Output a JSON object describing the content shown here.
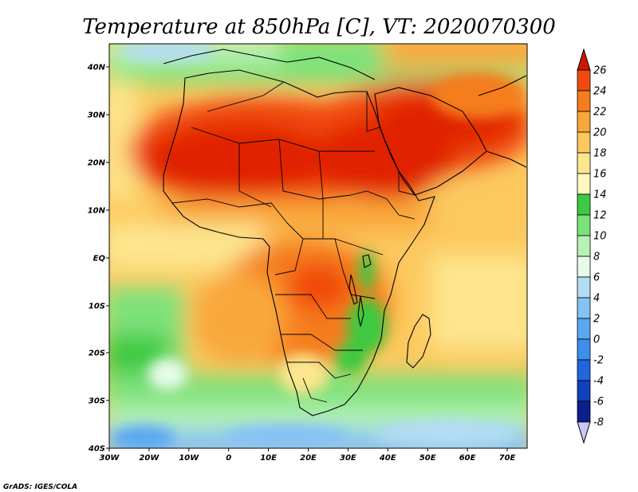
{
  "title": "Temperature at 850hPa [C], VT: 2020070300",
  "credit": "GrADS: IGES/COLA",
  "map": {
    "lon_range": [
      -30,
      75
    ],
    "lat_range": [
      -40,
      45
    ],
    "x_ticks": [
      "30W",
      "20W",
      "10W",
      "0",
      "10E",
      "20E",
      "30E",
      "40E",
      "50E",
      "60E",
      "70E"
    ],
    "y_ticks": [
      "40N",
      "30N",
      "20N",
      "10N",
      "EQ",
      "10S",
      "20S",
      "30S",
      "40S"
    ],
    "variable": "850hPa temperature",
    "units": "C"
  },
  "colorbar": {
    "labels": [
      "26",
      "24",
      "22",
      "20",
      "18",
      "16",
      "14",
      "12",
      "10",
      "8",
      "6",
      "4",
      "2",
      "0",
      "-2",
      "-4",
      "-6",
      "-8"
    ],
    "colors_top_to_bottom": [
      "#e02000",
      "#f04a10",
      "#f57d1a",
      "#f9a73a",
      "#fcc95e",
      "#fde68e",
      "#fff8be",
      "#3dc941",
      "#7ee27a",
      "#b6f2b4",
      "#e6fbea",
      "#b4dcf6",
      "#87c2f4",
      "#5ba8f0",
      "#3e8eec",
      "#2266dd",
      "#1042bb",
      "#0a1e8c",
      "#050a60"
    ],
    "top_arrow_color": "#cc1800",
    "bottom_arrow_color": "#c8c8f8"
  }
}
